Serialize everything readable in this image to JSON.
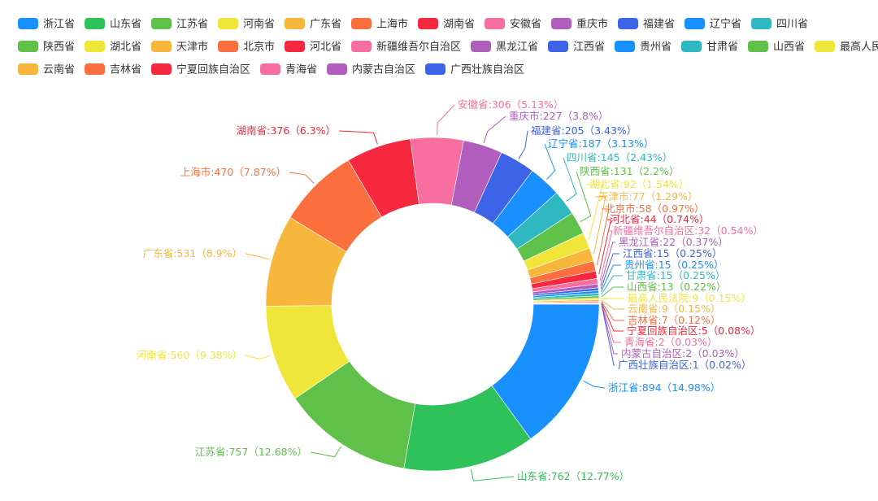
{
  "chart_data": {
    "type": "donut",
    "series": [
      {
        "name": "浙江省",
        "value": 894,
        "percent": "14.98%",
        "color": "#1890ff"
      },
      {
        "name": "山东省",
        "value": 762,
        "percent": "12.77%",
        "color": "#2fc25b"
      },
      {
        "name": "江苏省",
        "value": 757,
        "percent": "12.68%",
        "color": "#5fc04a"
      },
      {
        "name": "河南省",
        "value": 560,
        "percent": "9.38%",
        "color": "#f0e63a"
      },
      {
        "name": "广东省",
        "value": 531,
        "percent": "8.9%",
        "color": "#f7b73d"
      },
      {
        "name": "上海市",
        "value": 470,
        "percent": "7.87%",
        "color": "#fb6f3e"
      },
      {
        "name": "湖南省",
        "value": 376,
        "percent": "6.3%",
        "color": "#f5283f"
      },
      {
        "name": "安徽省",
        "value": 306,
        "percent": "5.13%",
        "color": "#f76fa0"
      },
      {
        "name": "重庆市",
        "value": 227,
        "percent": "3.8%",
        "color": "#b15dbd"
      },
      {
        "name": "福建省",
        "value": 205,
        "percent": "3.43%",
        "color": "#3d63e6"
      },
      {
        "name": "辽宁省",
        "value": 187,
        "percent": "3.13%",
        "color": "#1890ff"
      },
      {
        "name": "四川省",
        "value": 145,
        "percent": "2.43%",
        "color": "#2fb8c2"
      },
      {
        "name": "陕西省",
        "value": 131,
        "percent": "2.2%",
        "color": "#5fc04a"
      },
      {
        "name": "湖北省",
        "value": 92,
        "percent": "1.54%",
        "color": "#f0e63a"
      },
      {
        "name": "天津市",
        "value": 77,
        "percent": "1.29%",
        "color": "#f7b73d"
      },
      {
        "name": "北京市",
        "value": 58,
        "percent": "0.97%",
        "color": "#fb6f3e"
      },
      {
        "name": "河北省",
        "value": 44,
        "percent": "0.74%",
        "color": "#f5283f"
      },
      {
        "name": "新疆维吾尔自治区",
        "value": 32,
        "percent": "0.54%",
        "color": "#f76fa0"
      },
      {
        "name": "黑龙江省",
        "value": 22,
        "percent": "0.37%",
        "color": "#b15dbd"
      },
      {
        "name": "江西省",
        "value": 15,
        "percent": "0.25%",
        "color": "#3d63e6"
      },
      {
        "name": "贵州省",
        "value": 15,
        "percent": "0.25%",
        "color": "#1890ff"
      },
      {
        "name": "甘肃省",
        "value": 15,
        "percent": "0.25%",
        "color": "#2fb8c2"
      },
      {
        "name": "山西省",
        "value": 13,
        "percent": "0.22%",
        "color": "#5fc04a"
      },
      {
        "name": "最高人民法院",
        "value": 9,
        "percent": "0.15%",
        "color": "#f0e63a"
      },
      {
        "name": "云南省",
        "value": 9,
        "percent": "0.15%",
        "color": "#f7b73d"
      },
      {
        "name": "吉林省",
        "value": 7,
        "percent": "0.12%",
        "color": "#fb6f3e"
      },
      {
        "name": "宁夏回族自治区",
        "value": 5,
        "percent": "0.08%",
        "color": "#f5283f"
      },
      {
        "name": "青海省",
        "value": 2,
        "percent": "0.03%",
        "color": "#f76fa0"
      },
      {
        "name": "内蒙古自治区",
        "value": 2,
        "percent": "0.03%",
        "color": "#b15dbd"
      },
      {
        "name": "广西壮族自治区",
        "value": 1,
        "percent": "0.02%",
        "color": "#3d63e6"
      }
    ],
    "legend_placement": "top"
  }
}
